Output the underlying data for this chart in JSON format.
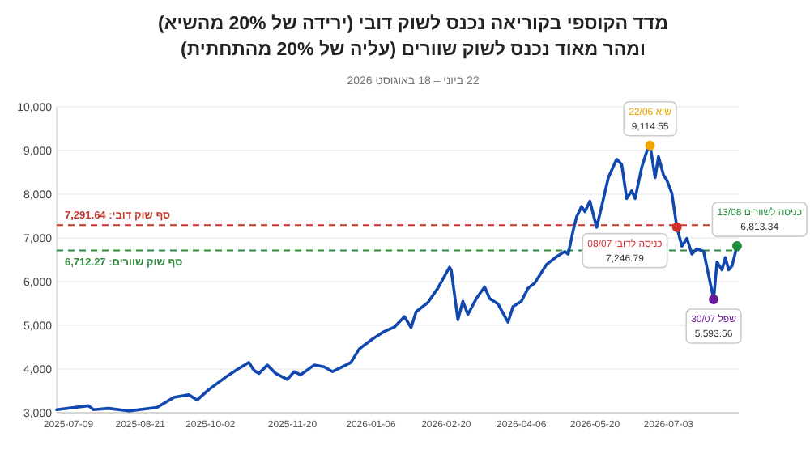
{
  "chart_data": {
    "type": "line",
    "title": "מדד הקוספי בקוריאה נכנס לשוק דובי (ירידה של 20% מהשיא)\nומהר מאוד נכנס לשוק שוורים (עליה של 20% מהתחתית)",
    "subtitle": "22 ביוני – 18 באוגוסט 2026",
    "x": [
      "2025-07-02",
      "2025-07-21",
      "2025-07-24",
      "2025-08-02",
      "2025-08-14",
      "2025-08-31",
      "2025-09-10",
      "2025-09-19",
      "2025-09-24",
      "2025-10-01",
      "2025-10-12",
      "2025-10-18",
      "2025-10-25",
      "2025-10-28",
      "2025-10-31",
      "2025-11-05",
      "2025-11-10",
      "2025-11-17",
      "2025-11-21",
      "2025-11-25",
      "2025-12-03",
      "2025-12-09",
      "2025-12-14",
      "2025-12-21",
      "2025-12-25",
      "2025-12-30",
      "2026-01-07",
      "2026-01-14",
      "2026-01-20",
      "2026-01-26",
      "2026-01-30",
      "2026-02-02",
      "2026-02-09",
      "2026-02-15",
      "2026-02-22",
      "2026-02-23",
      "2026-02-27",
      "2026-03-02",
      "2026-03-05",
      "2026-03-10",
      "2026-03-15",
      "2026-03-18",
      "2026-03-23",
      "2026-03-29",
      "2026-04-01",
      "2026-04-06",
      "2026-04-10",
      "2026-04-14",
      "2026-04-21",
      "2026-04-27",
      "2026-05-02",
      "2026-05-04",
      "2026-05-07",
      "2026-05-09",
      "2026-05-12",
      "2026-05-14",
      "2026-05-17",
      "2026-05-21",
      "2026-05-24",
      "2026-05-28",
      "2026-06-02",
      "2026-06-05",
      "2026-06-08",
      "2026-06-11",
      "2026-06-13",
      "2026-06-17",
      "2026-06-20",
      "2026-06-22",
      "2026-06-25",
      "2026-06-27",
      "2026-06-30",
      "2026-07-02",
      "2026-07-05",
      "2026-07-08",
      "2026-07-11",
      "2026-07-14",
      "2026-07-17",
      "2026-07-20",
      "2026-07-24",
      "2026-07-30",
      "2026-08-01",
      "2026-08-04",
      "2026-08-06",
      "2026-08-08",
      "2026-08-10",
      "2026-08-13"
    ],
    "series": [
      {
        "color": "#1048b0",
        "values": [
          3070,
          3160,
          3070,
          3100,
          3040,
          3120,
          3350,
          3410,
          3290,
          3530,
          3840,
          3990,
          4150,
          3970,
          3900,
          4090,
          3900,
          3760,
          3940,
          3870,
          4090,
          4050,
          3940,
          4070,
          4150,
          4460,
          4690,
          4860,
          4960,
          5200,
          4950,
          5310,
          5520,
          5850,
          6330,
          6270,
          5130,
          5550,
          5250,
          5610,
          5880,
          5610,
          5490,
          5070,
          5430,
          5550,
          5850,
          5970,
          6390,
          6570,
          6690,
          6630,
          7180,
          7480,
          7720,
          7600,
          7840,
          7240,
          7720,
          8380,
          8800,
          8680,
          7900,
          8080,
          7900,
          8620,
          8980,
          9114.55,
          8380,
          8860,
          8440,
          8320,
          8020,
          7246.79,
          6810,
          6990,
          6630,
          6750,
          6690,
          5593.56,
          6450,
          6270,
          6550,
          6270,
          6360,
          6813.34
        ]
      },
      {
        "type": "scatter",
        "x": [
          "2026-06-22",
          "2026-07-08",
          "2026-07-30",
          "2026-08-13"
        ],
        "values": [
          9114.55,
          7246.79,
          5593.56,
          6813.34
        ],
        "colors": [
          "#f0a500",
          "#d32f2f",
          "#6a1b9a",
          "#1e8c3a"
        ]
      }
    ],
    "annotations": [
      {
        "text": "שיא 22/06\n9,114.55",
        "x": "2026-06-22",
        "y": 9114.55
      },
      {
        "text": "כניסה לדובי 08/07\n7,246.79",
        "x": "2026-07-08",
        "y": 7246.79
      },
      {
        "text": "שפל 30/07\n5,593.56",
        "x": "2026-07-30",
        "y": 5593.56
      },
      {
        "text": "כניסה לשוורים 13/08\n6,813.34",
        "x": "2026-08-13",
        "y": 6813.34
      }
    ],
    "ref_lines": [
      {
        "axis": "y",
        "value": 7291.64,
        "label": "סף שוק דובי: 7,291.64",
        "color": "#c0392b",
        "line_style": "dashed"
      },
      {
        "axis": "y",
        "value": 6712.27,
        "label": "סף שוק שוורים: 6,712.27",
        "color": "#2e8b3e",
        "line_style": "dashed"
      }
    ],
    "xlim": [
      "2025-07-02",
      "2026-08-14"
    ],
    "xticks": [
      "2025-07-09",
      "2025-08-21",
      "2025-10-02",
      "2025-11-20",
      "2026-01-06",
      "2026-02-20",
      "2026-04-06",
      "2026-05-20",
      "2026-07-03"
    ],
    "ylim": [
      3000,
      10000
    ],
    "yticks": [
      {
        "value": 3000,
        "label": "3,000"
      },
      {
        "value": 4000,
        "label": "4,000"
      },
      {
        "value": 5000,
        "label": "5,000"
      },
      {
        "value": 6000,
        "label": "6,000"
      },
      {
        "value": 7000,
        "label": "7,000"
      },
      {
        "value": 8000,
        "label": "8,000"
      },
      {
        "value": 9000,
        "label": "9,000"
      },
      {
        "value": 10000,
        "label": "10,000"
      }
    ],
    "grid": "y"
  }
}
